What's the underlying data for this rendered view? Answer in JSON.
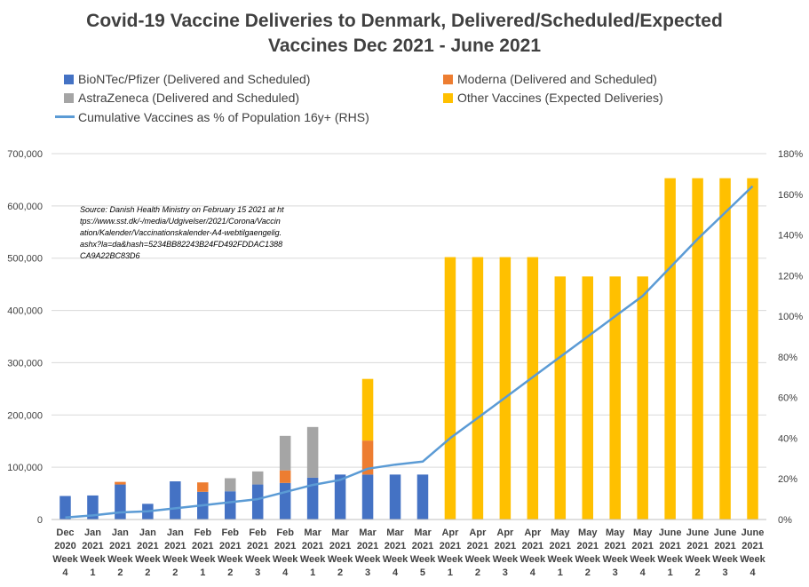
{
  "title_lines": [
    "Covid-19 Vaccine Deliveries to Denmark, Delivered/Scheduled/Expected",
    "Vaccines Dec 2021 - June 2021"
  ],
  "legend": [
    {
      "label": "BioNTec/Pfizer (Delivered and Scheduled)",
      "color": "#4472C4",
      "kind": "bar"
    },
    {
      "label": "Moderna (Delivered and Scheduled)",
      "color": "#ED7D31",
      "kind": "bar"
    },
    {
      "label": "AstraZeneca (Delivered and Scheduled)",
      "color": "#A5A5A5",
      "kind": "bar"
    },
    {
      "label": "Other Vaccines (Expected Deliveries)",
      "color": "#FFC000",
      "kind": "bar"
    },
    {
      "label": "Cumulative Vaccines as % of Population 16y+ (RHS)",
      "color": "#5B9BD5",
      "kind": "line"
    }
  ],
  "source_note": "Source: Danish Health Ministry on February 15 2021 at https://www.sst.dk/-/media/Udgivelser/2021/Corona/Vaccination/Kalender/Vaccinationskalender-A4-webtilgaengelig.ashx?la=da&hash=5234BB82243B24FD492FDDAC1388CA9A22BC83D6",
  "chart_data": {
    "type": "bar",
    "stacked": true,
    "categories": [
      [
        "Dec",
        "2020",
        "Week",
        "4"
      ],
      [
        "Jan",
        "2021",
        "Week",
        "1"
      ],
      [
        "Jan",
        "2021",
        "Week",
        "2"
      ],
      [
        "Jan",
        "2021",
        "Week",
        "2"
      ],
      [
        "Jan",
        "2021",
        "Week",
        "2"
      ],
      [
        "Feb",
        "2021",
        "Week",
        "1"
      ],
      [
        "Feb",
        "2021",
        "Week",
        "2"
      ],
      [
        "Feb",
        "2021",
        "Week",
        "3"
      ],
      [
        "Feb",
        "2021",
        "Week",
        "4"
      ],
      [
        "Mar",
        "2021",
        "Week",
        "1"
      ],
      [
        "Mar",
        "2021",
        "Week",
        "2"
      ],
      [
        "Mar",
        "2021",
        "Week",
        "3"
      ],
      [
        "Mar",
        "2021",
        "Week",
        "4"
      ],
      [
        "Mar",
        "2021",
        "Week",
        "5"
      ],
      [
        "Apr",
        "2021",
        "Week",
        "1"
      ],
      [
        "Apr",
        "2021",
        "Week",
        "2"
      ],
      [
        "Apr",
        "2021",
        "Week",
        "3"
      ],
      [
        "Apr",
        "2021",
        "Week",
        "4"
      ],
      [
        "May",
        "2021",
        "Week",
        "1"
      ],
      [
        "May",
        "2021",
        "Week",
        "2"
      ],
      [
        "May",
        "2021",
        "Week",
        "3"
      ],
      [
        "May",
        "2021",
        "Week",
        "4"
      ],
      [
        "June",
        "2021",
        "Week",
        "1"
      ],
      [
        "June",
        "2021",
        "Week",
        "2"
      ],
      [
        "June",
        "2021",
        "Week",
        "3"
      ],
      [
        "June",
        "2021",
        "Week",
        "4"
      ]
    ],
    "series": [
      {
        "name": "BioNTec/Pfizer (Delivered and Scheduled)",
        "color": "#4472C4",
        "values": [
          45000,
          46000,
          67000,
          30000,
          73000,
          53000,
          54000,
          67000,
          70000,
          80000,
          86000,
          86000,
          86000,
          86000,
          0,
          0,
          0,
          0,
          0,
          0,
          0,
          0,
          0,
          0,
          0,
          0
        ]
      },
      {
        "name": "Moderna (Delivered and Scheduled)",
        "color": "#ED7D31",
        "values": [
          0,
          0,
          5000,
          0,
          0,
          18000,
          0,
          0,
          24000,
          0,
          0,
          65000,
          0,
          0,
          0,
          0,
          0,
          0,
          0,
          0,
          0,
          0,
          0,
          0,
          0,
          0
        ]
      },
      {
        "name": "AstraZeneca (Delivered and Scheduled)",
        "color": "#A5A5A5",
        "values": [
          0,
          0,
          0,
          0,
          0,
          0,
          25000,
          25000,
          66000,
          97000,
          0,
          0,
          0,
          0,
          0,
          0,
          0,
          0,
          0,
          0,
          0,
          0,
          0,
          0,
          0,
          0
        ]
      },
      {
        "name": "Other Vaccines (Expected Deliveries)",
        "color": "#FFC000",
        "values": [
          0,
          0,
          0,
          0,
          0,
          0,
          0,
          0,
          0,
          0,
          0,
          118000,
          0,
          0,
          502000,
          502000,
          502000,
          502000,
          465000,
          465000,
          465000,
          465000,
          653000,
          653000,
          653000,
          653000
        ]
      }
    ],
    "line_series": {
      "name": "Cumulative Vaccines as % of Population 16y+ (RHS)",
      "color": "#5B9BD5",
      "axis": "right",
      "values": [
        1,
        2,
        3.5,
        4,
        5.5,
        7,
        8.5,
        10,
        13.5,
        17,
        19.5,
        25,
        27,
        28.5,
        40,
        50,
        60,
        70,
        80,
        90,
        100,
        110,
        124,
        138,
        151,
        164
      ]
    },
    "y_left": {
      "min": 0,
      "max": 700000,
      "step": 100000,
      "tick_labels": [
        "0",
        "100,000",
        "200,000",
        "300,000",
        "400,000",
        "500,000",
        "600,000",
        "700,000"
      ]
    },
    "y_right": {
      "min": 0,
      "max": 180,
      "step": 20,
      "tick_labels": [
        "0%",
        "20%",
        "40%",
        "60%",
        "80%",
        "100%",
        "120%",
        "140%",
        "160%",
        "180%"
      ]
    },
    "grid": true,
    "legend_position": "top"
  }
}
